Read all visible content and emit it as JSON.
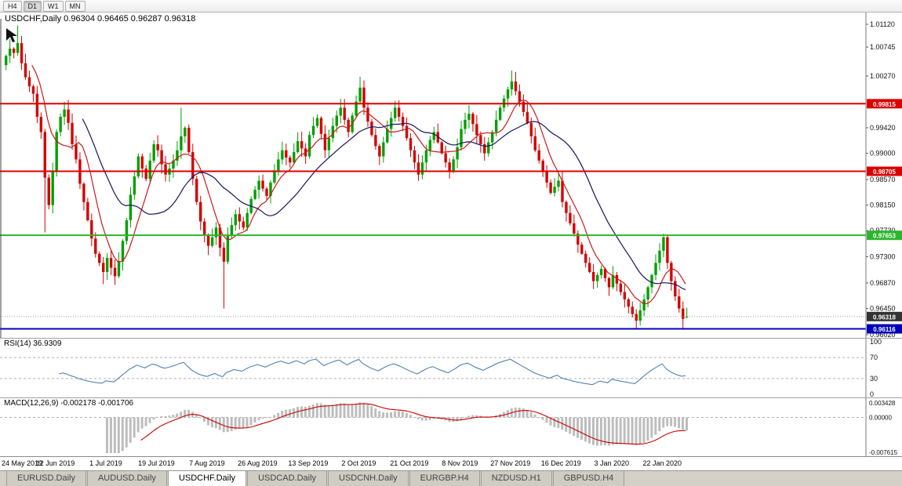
{
  "toolbar": {
    "buttons": [
      {
        "label": "H4",
        "active": false
      },
      {
        "label": "D1",
        "active": true
      },
      {
        "label": "W1",
        "active": false
      },
      {
        "label": "MN",
        "active": false
      }
    ]
  },
  "chart": {
    "title_line": "USDCHF,Daily 0.96304 0.96465 0.96287 0.96318",
    "symbol": "USDCHF",
    "timeframe": "Daily",
    "up_color": "#00a000",
    "down_color": "#d40000",
    "ma_fast_color": "#cc1a1a",
    "ma_slow_color": "#14145f",
    "dotted_price_line_color": "#9a9a9a",
    "current_price_badge_color": "#333333"
  },
  "chart_data": {
    "type": "candlestick",
    "symbol": "USDCHF",
    "timeframe": "Daily",
    "x_axis_dates": [
      "24 May 2019",
      "12 Jun 2019",
      "1 Jul 2019",
      "19 Jul 2019",
      "7 Aug 2019",
      "26 Aug 2019",
      "13 Sep 2019",
      "2 Oct 2019",
      "21 Oct 2019",
      "8 Nov 2019",
      "27 Nov 2019",
      "16 Dec 2019",
      "3 Jan 2020",
      "22 Jan 2020"
    ],
    "y_axis_ticks": [
      "1.01120",
      "1.00745",
      "1.00270",
      "0.99420",
      "0.99000",
      "0.98570",
      "0.98150",
      "0.97730",
      "0.97300",
      "0.96870",
      "0.96450",
      "0.96020"
    ],
    "price_range": {
      "min": 0.95968,
      "max": 1.01313
    },
    "first_open": 1.0045,
    "closes": [
      1.006,
      1.0072,
      1.0065,
      1.0081,
      1.0048,
      1.0025,
      1.001,
      0.9998,
      0.996,
      0.9935,
      0.986,
      0.9815,
      0.987,
      0.9935,
      0.996,
      0.9972,
      0.995,
      0.9915,
      0.989,
      0.985,
      0.982,
      0.979,
      0.976,
      0.9735,
      0.972,
      0.9705,
      0.9728,
      0.9712,
      0.9698,
      0.9722,
      0.9756,
      0.979,
      0.9832,
      0.9862,
      0.9895,
      0.9875,
      0.9858,
      0.9888,
      0.9915,
      0.9905,
      0.9882,
      0.9865,
      0.9875,
      0.9888,
      0.9905,
      0.9928,
      0.9942,
      0.9902,
      0.9858,
      0.982,
      0.9788,
      0.9765,
      0.9748,
      0.9762,
      0.9778,
      0.9745,
      0.9722,
      0.9765,
      0.9782,
      0.98,
      0.9788,
      0.9778,
      0.9802,
      0.9825,
      0.984,
      0.9855,
      0.9842,
      0.983,
      0.9852,
      0.9872,
      0.989,
      0.9905,
      0.9893,
      0.9885,
      0.9902,
      0.992,
      0.9908,
      0.9895,
      0.993,
      0.9945,
      0.9958,
      0.9932,
      0.9905,
      0.9925,
      0.9945,
      0.9962,
      0.9975,
      0.9955,
      0.9935,
      0.9962,
      0.9985,
      1.0008,
      0.9975,
      0.9952,
      0.993,
      0.9912,
      0.9895,
      0.9918,
      0.994,
      0.9958,
      0.9975,
      0.996,
      0.9945,
      0.9925,
      0.9905,
      0.9885,
      0.9865,
      0.9885,
      0.9905,
      0.9922,
      0.9935,
      0.9918,
      0.99,
      0.9885,
      0.987,
      0.989,
      0.991,
      0.994,
      0.9955,
      0.9965,
      0.9948,
      0.993,
      0.9915,
      0.99,
      0.9918,
      0.9935,
      0.9955,
      0.9975,
      0.999,
      1.0005,
      1.0018,
      1.0002,
      0.9985,
      0.9968,
      0.995,
      0.9928,
      0.9905,
      0.9888,
      0.987,
      0.9852,
      0.9835,
      0.9845,
      0.9855,
      0.982,
      0.9802,
      0.9785,
      0.9768,
      0.975,
      0.9735,
      0.972,
      0.9705,
      0.969,
      0.97,
      0.971,
      0.9695,
      0.968,
      0.97,
      0.9686,
      0.9672,
      0.966,
      0.9648,
      0.9636,
      0.9625,
      0.9642,
      0.966,
      0.968,
      0.97,
      0.972,
      0.974,
      0.9762,
      0.972,
      0.969,
      0.9665,
      0.9645,
      0.9628,
      0.96318
    ],
    "high_overrides": {
      "3": 1.011,
      "45": 0.9975,
      "91": 1.0026,
      "130": 1.0036,
      "169": 0.9768
    },
    "low_overrides": {
      "10": 0.977,
      "25": 0.9685,
      "56": 0.9645,
      "162": 0.9613,
      "174": 0.9612
    },
    "last_candle": {
      "open": 0.96304,
      "high": 0.96465,
      "low": 0.96287,
      "close": 0.96318
    },
    "horizontal_lines": [
      {
        "price": 0.99815,
        "label": "0.99815",
        "color": "#dd0000",
        "width": 2
      },
      {
        "price": 0.98705,
        "label": "0.98705",
        "color": "#dd0000",
        "width": 2
      },
      {
        "price": 0.97653,
        "label": "0.97653",
        "color": "#2db52d",
        "width": 2
      },
      {
        "price": 0.96116,
        "label": "0.96116",
        "color": "#0000bb",
        "width": 2
      }
    ],
    "current_price_label": "0.96318",
    "indicators": {
      "ma_fast_period": 8,
      "ma_slow_period": 21,
      "rsi": {
        "period": 14,
        "current": 36.9309,
        "levels": [
          100,
          70,
          30,
          0
        ]
      },
      "macd": {
        "fast": 12,
        "slow": 26,
        "signal": 9,
        "current_main": -0.002178,
        "current_signal": -0.001706,
        "axis_max": 0.003428,
        "axis_min": -0.007615
      }
    }
  },
  "rsi": {
    "title_line": "RSI(14) 36.9309",
    "level_labels": [
      "100",
      "70",
      "30",
      "0"
    ],
    "line_color": "#3d77b0"
  },
  "macd": {
    "title_line": "MACD(12,26,9) -0.002178 -0.001706",
    "axis_labels": [
      "0.003428",
      "0.00000",
      "-0.007615"
    ],
    "hist_color": "#bdbdbd",
    "signal_color": "#cc0000"
  },
  "tabs": [
    {
      "label": "EURUSD.Daily",
      "active": false
    },
    {
      "label": "AUDUSD.Daily",
      "active": false
    },
    {
      "label": "USDCHF.Daily",
      "active": true
    },
    {
      "label": "USDCAD.Daily",
      "active": false
    },
    {
      "label": "USDCNH.Daily",
      "active": false
    },
    {
      "label": "EURGBP.H4",
      "active": false
    },
    {
      "label": "NZDUSD.H1",
      "active": false
    },
    {
      "label": "GBPUSD.H4",
      "active": false
    }
  ]
}
